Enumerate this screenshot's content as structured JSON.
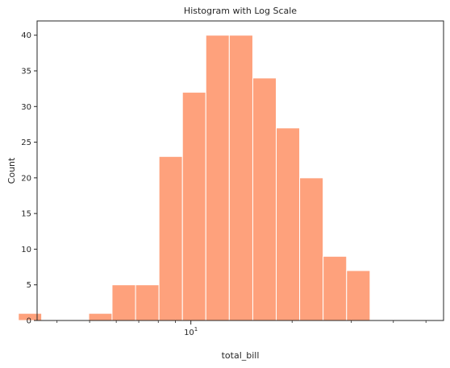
{
  "chart_data": {
    "type": "bar",
    "title": "Histogram with Log Scale",
    "xlabel": "total_bill",
    "ylabel": "Count",
    "x_scale": "log",
    "x_major_tick": {
      "value": 10,
      "base": "10",
      "exponent": "1"
    },
    "x_minor_ticks": [
      4,
      5,
      6,
      7,
      8,
      9,
      20,
      30,
      40,
      50
    ],
    "xlim": [
      3.49,
      56.4
    ],
    "ylim": [
      0,
      42
    ],
    "yticks": [
      0,
      5,
      10,
      15,
      20,
      25,
      30,
      35,
      40
    ],
    "bar_color": "#fea17c",
    "bar_edge_color": "#ffffff",
    "bins": [
      {
        "x0": 3.07,
        "x1": 3.6,
        "count": 1
      },
      {
        "x0": 3.6,
        "x1": 4.23,
        "count": 0
      },
      {
        "x0": 4.23,
        "x1": 4.97,
        "count": 0
      },
      {
        "x0": 4.97,
        "x1": 5.83,
        "count": 1
      },
      {
        "x0": 5.83,
        "x1": 6.85,
        "count": 5
      },
      {
        "x0": 6.85,
        "x1": 8.04,
        "count": 5
      },
      {
        "x0": 8.04,
        "x1": 9.44,
        "count": 23
      },
      {
        "x0": 9.44,
        "x1": 11.08,
        "count": 32
      },
      {
        "x0": 11.08,
        "x1": 13.01,
        "count": 40
      },
      {
        "x0": 13.01,
        "x1": 15.28,
        "count": 40
      },
      {
        "x0": 15.28,
        "x1": 17.94,
        "count": 34
      },
      {
        "x0": 17.94,
        "x1": 21.06,
        "count": 27
      },
      {
        "x0": 21.06,
        "x1": 24.73,
        "count": 20
      },
      {
        "x0": 24.73,
        "x1": 29.04,
        "count": 9
      },
      {
        "x0": 29.04,
        "x1": 34.1,
        "count": 7
      }
    ]
  }
}
